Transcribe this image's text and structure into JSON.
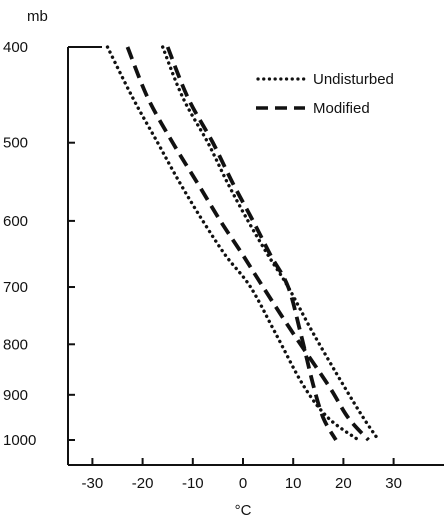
{
  "chart_data": {
    "type": "line",
    "title": "",
    "xlabel": "°C",
    "ylabel": "mb",
    "xlim": [
      -35,
      35
    ],
    "ylim": [
      400,
      1000
    ],
    "x_ticks": [
      -30,
      -20,
      -10,
      0,
      10,
      20,
      30
    ],
    "x_tick_labels": [
      "-30",
      "-20",
      "-10",
      "0",
      "10",
      "20",
      "30"
    ],
    "y_ticks": [
      400,
      500,
      600,
      700,
      800,
      900,
      1000
    ],
    "y_tick_labels": [
      "400",
      "500",
      "600",
      "700",
      "800",
      "900",
      "1000"
    ],
    "y_scale": "log",
    "y_inverted": true,
    "grid": false,
    "legend_position": "top-right",
    "series": [
      {
        "name": "Undisturbed",
        "style": "dotted",
        "x": [
          -16,
          -12,
          -7,
          -3,
          1,
          5,
          9,
          14,
          20,
          24,
          27
        ],
        "y": [
          400,
          450,
          500,
          550,
          600,
          650,
          700,
          780,
          880,
          950,
          1000
        ]
      },
      {
        "name": "Undisturbed",
        "style": "dotted",
        "x": [
          -27,
          -22,
          -17,
          -12.5,
          -8,
          -3.5,
          1.5,
          6.5,
          12,
          17,
          23
        ],
        "y": [
          400,
          450,
          500,
          550,
          600,
          650,
          700,
          780,
          880,
          950,
          1000
        ]
      },
      {
        "name": "Modified",
        "style": "dashed",
        "x": [
          -23,
          -19,
          -14,
          -9,
          -4.5,
          0,
          4,
          10,
          17,
          21,
          25
        ],
        "y": [
          400,
          450,
          500,
          550,
          600,
          650,
          700,
          780,
          880,
          950,
          1000
        ]
      },
      {
        "name": "Modified",
        "style": "dashed",
        "x": [
          -15,
          -11,
          -6,
          -2,
          2,
          5.5,
          9,
          11.5,
          14,
          16,
          18.5
        ],
        "y": [
          400,
          450,
          500,
          550,
          600,
          650,
          700,
          780,
          880,
          950,
          1000
        ]
      }
    ]
  }
}
